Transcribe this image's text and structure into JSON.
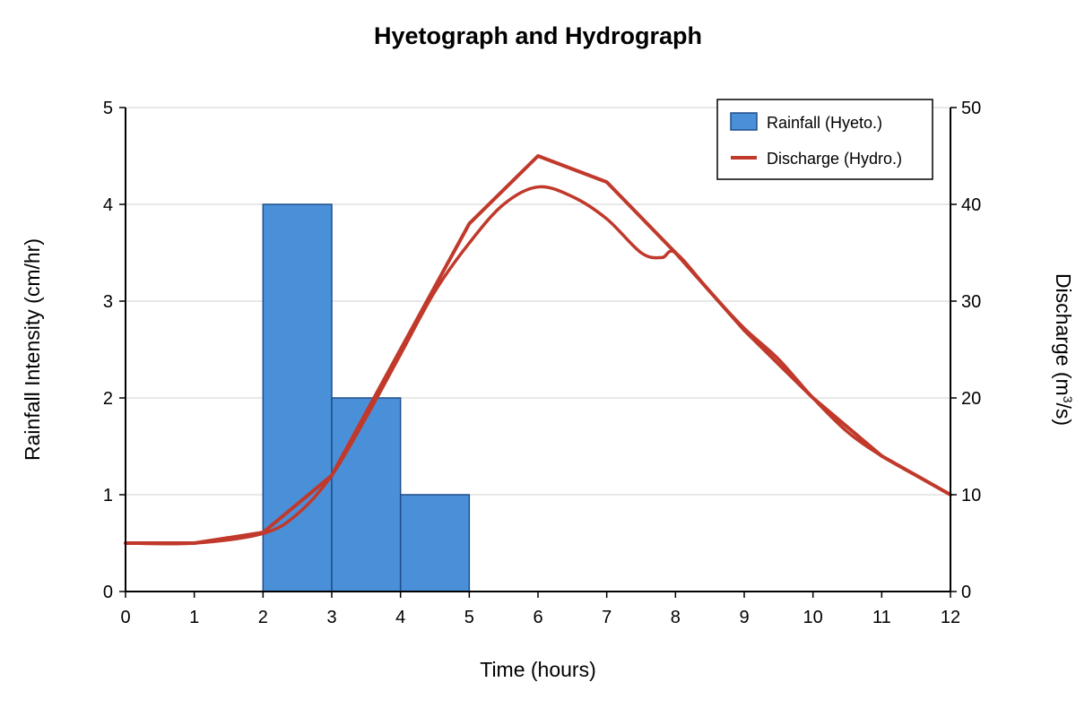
{
  "chart_data": {
    "type": "bar+line",
    "title": "Hyetograph and Hydrograph",
    "xlabel": "Time (hours)",
    "ylabel_left": "Rainfall Intensity (cm/hr)",
    "ylabel_right_parts": [
      "Discharge (m",
      "3",
      "/s)"
    ],
    "x_ticks": [
      "0",
      "1",
      "2",
      "3",
      "4",
      "5",
      "6",
      "7",
      "8",
      "9",
      "10",
      "11",
      "12"
    ],
    "y_left_ticks": [
      "0",
      "1",
      "2",
      "3",
      "4",
      "5"
    ],
    "y_right_ticks": [
      "0",
      "10",
      "20",
      "30",
      "40",
      "50"
    ],
    "xlim": [
      0,
      12
    ],
    "ylim_left": [
      0,
      5
    ],
    "ylim_right": [
      0,
      50
    ],
    "grid": true,
    "legend_position": "top-right",
    "series": [
      {
        "name": "Rainfall (Hyeto.)",
        "kind": "bar",
        "axis": "left",
        "color": "#4a90d9",
        "edge_color": "#1f4e8c",
        "bars": [
          {
            "start": 2,
            "end": 3,
            "value": 4
          },
          {
            "start": 3,
            "end": 4,
            "value": 2
          },
          {
            "start": 4,
            "end": 5,
            "value": 1
          }
        ]
      },
      {
        "name": "Discharge (Hydro.)",
        "kind": "line",
        "axis": "right",
        "color": "#c0392b",
        "points": [
          [
            0,
            5
          ],
          [
            1,
            5
          ],
          [
            2,
            6.1
          ],
          [
            3,
            12
          ],
          [
            4,
            25
          ],
          [
            5,
            38
          ],
          [
            6,
            45
          ],
          [
            7,
            42.3
          ],
          [
            8,
            35
          ],
          [
            9,
            27
          ],
          [
            10,
            20
          ],
          [
            11,
            14
          ],
          [
            12,
            10
          ]
        ]
      },
      {
        "kind": "line",
        "axis": "right",
        "color": "#c0392b",
        "points": [
          [
            0,
            5
          ],
          [
            1,
            5
          ],
          [
            2,
            6
          ],
          [
            2.5,
            8
          ],
          [
            3,
            12
          ],
          [
            3.5,
            18
          ],
          [
            4,
            24.5
          ],
          [
            4.5,
            31
          ],
          [
            5,
            36
          ],
          [
            5.5,
            40
          ],
          [
            6,
            41.8
          ],
          [
            6.5,
            40.8
          ],
          [
            7,
            38.5
          ],
          [
            7.5,
            35
          ],
          [
            7.8,
            34.5
          ],
          [
            8,
            35
          ],
          [
            8.5,
            31
          ],
          [
            9,
            27.2
          ],
          [
            9.5,
            24
          ],
          [
            10,
            20
          ],
          [
            10.5,
            16.5
          ],
          [
            11,
            14
          ],
          [
            11.5,
            12
          ],
          [
            12,
            10
          ]
        ]
      }
    ]
  }
}
